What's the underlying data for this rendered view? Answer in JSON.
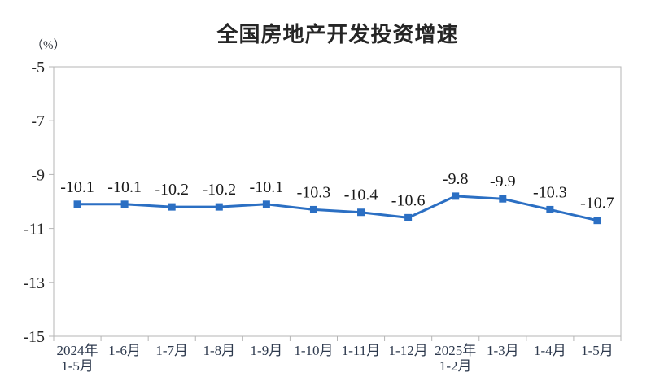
{
  "chart_data": {
    "type": "line",
    "title": "全国房地产开发投资增速",
    "ylabel": "（%）",
    "xlabel": "",
    "categories": [
      "2024年\n1-5月",
      "1-6月",
      "1-7月",
      "1-8月",
      "1-9月",
      "1-10月",
      "1-11月",
      "1-12月",
      "2025年\n1-2月",
      "1-3月",
      "1-4月",
      "1-5月"
    ],
    "values": [
      -10.1,
      -10.1,
      -10.2,
      -10.2,
      -10.1,
      -10.3,
      -10.4,
      -10.6,
      -9.8,
      -9.9,
      -10.3,
      -10.7
    ],
    "data_labels": [
      "-10.1",
      "-10.1",
      "-10.2",
      "-10.2",
      "-10.1",
      "-10.3",
      "-10.4",
      "-10.6",
      "-9.8",
      "-9.9",
      "-10.3",
      "-10.7"
    ],
    "yticks": [
      "-5",
      "-7",
      "-9",
      "-11",
      "-13",
      "-15"
    ],
    "ytick_values": [
      -5,
      -7,
      -9,
      -11,
      -13,
      -15
    ],
    "ylim": [
      -15,
      -5
    ],
    "grid": false,
    "legend": "none",
    "marker": "square",
    "line_color": "#2b6fc3",
    "axis_color": "#b5b5b5"
  }
}
